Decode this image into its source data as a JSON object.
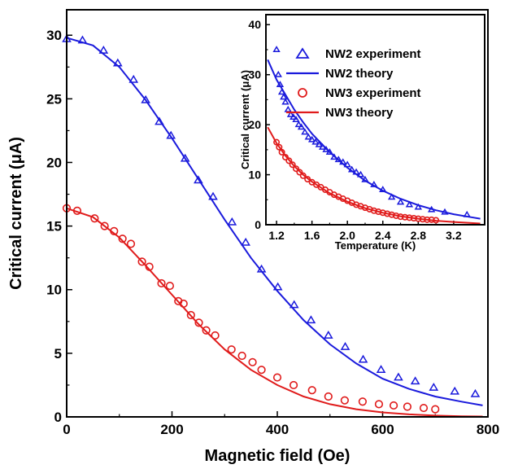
{
  "chart_data": [
    {
      "type": "scatter",
      "panel": "main",
      "xlabel": "Magnetic field (Oe)",
      "ylabel": "Critical current (μA)",
      "xlim": [
        0,
        800
      ],
      "ylim": [
        0,
        32
      ],
      "xticks": [
        0,
        200,
        400,
        600,
        800
      ],
      "yticks": [
        0,
        5,
        10,
        15,
        20,
        25,
        30
      ],
      "grid": false,
      "series": [
        {
          "name": "NW2 experiment",
          "kind": "markers",
          "marker": "triangle",
          "color": "#1a1adc",
          "x": [
            0,
            30,
            70,
            97,
            127,
            150,
            176,
            198,
            225,
            250,
            278,
            314,
            340,
            370,
            401,
            432,
            464,
            497,
            529,
            563,
            597,
            630,
            662,
            697,
            737,
            776
          ],
          "y": [
            29.7,
            29.6,
            28.8,
            27.8,
            26.5,
            24.9,
            23.2,
            22.1,
            20.3,
            18.6,
            17.3,
            15.3,
            13.7,
            11.6,
            10.2,
            8.8,
            7.6,
            6.4,
            5.5,
            4.5,
            3.7,
            3.1,
            2.8,
            2.3,
            2.0,
            1.8
          ]
        },
        {
          "name": "NW2 theory",
          "kind": "line",
          "color": "#1a1adc",
          "x": [
            0,
            50,
            100,
            150,
            200,
            250,
            300,
            350,
            400,
            450,
            500,
            550,
            600,
            650,
            700,
            750,
            790
          ],
          "y": [
            29.8,
            29.2,
            27.5,
            24.9,
            21.9,
            18.7,
            15.5,
            12.5,
            9.9,
            7.6,
            5.7,
            4.2,
            3.0,
            2.2,
            1.6,
            1.2,
            0.9
          ]
        },
        {
          "name": "NW3 experiment",
          "kind": "markers",
          "marker": "circle",
          "color": "#e01b1b",
          "x": [
            0,
            20,
            53,
            72,
            90,
            106,
            122,
            143,
            157,
            180,
            196,
            212,
            222,
            236,
            251,
            265,
            282,
            313,
            333,
            353,
            370,
            400,
            431,
            466,
            497,
            528,
            562,
            593,
            621,
            647,
            678,
            700
          ],
          "y": [
            16.4,
            16.2,
            15.6,
            15.0,
            14.6,
            14.0,
            13.6,
            12.2,
            11.8,
            10.5,
            10.3,
            9.1,
            8.9,
            8.0,
            7.4,
            6.8,
            6.4,
            5.3,
            4.8,
            4.3,
            3.7,
            3.1,
            2.5,
            2.1,
            1.6,
            1.3,
            1.2,
            1.0,
            0.9,
            0.8,
            0.7,
            0.6
          ]
        },
        {
          "name": "NW3 theory",
          "kind": "line",
          "color": "#e01b1b",
          "x": [
            0,
            50,
            100,
            150,
            200,
            250,
            300,
            350,
            400,
            450,
            500,
            550,
            600,
            650,
            700,
            750,
            790
          ],
          "y": [
            16.4,
            15.7,
            14.1,
            11.9,
            9.6,
            7.3,
            5.3,
            3.7,
            2.5,
            1.6,
            1.0,
            0.6,
            0.35,
            0.2,
            0.1,
            0.05,
            0.03
          ]
        }
      ]
    },
    {
      "type": "scatter",
      "panel": "inset",
      "xlabel": "Temperature (K)",
      "ylabel": "Critical current (μA)",
      "xlim": [
        1.08,
        3.55
      ],
      "ylim": [
        0,
        42
      ],
      "xticks": [
        1.2,
        1.6,
        2.0,
        2.4,
        2.8,
        3.2
      ],
      "yticks": [
        0,
        10,
        20,
        30,
        40
      ],
      "legend_placement": "top-right",
      "grid": false,
      "series": [
        {
          "name": "NW2 experiment",
          "kind": "markers",
          "marker": "triangle",
          "color": "#1a1adc",
          "x": [
            1.2,
            1.22,
            1.24,
            1.26,
            1.28,
            1.3,
            1.33,
            1.36,
            1.39,
            1.42,
            1.45,
            1.48,
            1.52,
            1.56,
            1.6,
            1.64,
            1.68,
            1.72,
            1.76,
            1.8,
            1.85,
            1.9,
            1.95,
            2.0,
            2.05,
            2.1,
            2.15,
            2.2,
            2.3,
            2.4,
            2.5,
            2.6,
            2.7,
            2.8,
            2.95,
            3.1,
            3.35
          ],
          "y": [
            35,
            30,
            28,
            26.5,
            25.5,
            24.5,
            23,
            22,
            21.5,
            21,
            20,
            19.5,
            18.5,
            17.5,
            17,
            16.5,
            16,
            15.5,
            15,
            14.5,
            13.5,
            13,
            12.5,
            12,
            11,
            10.5,
            10,
            9,
            8,
            7,
            5.5,
            4.5,
            4,
            3.5,
            3,
            2.5,
            2
          ]
        },
        {
          "name": "NW2 theory",
          "kind": "line",
          "color": "#1a1adc",
          "x": [
            1.1,
            1.2,
            1.3,
            1.4,
            1.5,
            1.6,
            1.8,
            2.0,
            2.2,
            2.4,
            2.6,
            2.8,
            3.0,
            3.2,
            3.4,
            3.5
          ],
          "y": [
            33,
            29,
            26,
            23,
            20.5,
            18.2,
            14.5,
            11.4,
            8.8,
            6.8,
            5.2,
            3.9,
            2.9,
            2.1,
            1.5,
            1.2
          ]
        },
        {
          "name": "NW3 experiment",
          "kind": "markers",
          "marker": "circle",
          "color": "#e01b1b",
          "x": [
            1.2,
            1.23,
            1.26,
            1.3,
            1.34,
            1.38,
            1.42,
            1.46,
            1.5,
            1.55,
            1.6,
            1.65,
            1.7,
            1.75,
            1.8,
            1.85,
            1.9,
            1.95,
            2.0,
            2.05,
            2.1,
            2.15,
            2.2,
            2.25,
            2.3,
            2.35,
            2.4,
            2.45,
            2.5,
            2.55,
            2.6,
            2.65,
            2.7,
            2.75,
            2.8,
            2.85,
            2.9,
            2.95,
            3.0
          ],
          "y": [
            16.5,
            15.5,
            14.5,
            13.5,
            12.8,
            12,
            11.2,
            10.5,
            9.8,
            9.1,
            8.5,
            8,
            7.5,
            7,
            6.5,
            6,
            5.6,
            5.2,
            4.8,
            4.4,
            4,
            3.7,
            3.4,
            3.1,
            2.8,
            2.6,
            2.4,
            2.2,
            2,
            1.8,
            1.6,
            1.5,
            1.4,
            1.3,
            1.2,
            1.1,
            1,
            1,
            0.9
          ]
        },
        {
          "name": "NW3 theory",
          "kind": "line",
          "color": "#e01b1b",
          "x": [
            1.1,
            1.2,
            1.3,
            1.4,
            1.5,
            1.6,
            1.8,
            2.0,
            2.2,
            2.4,
            2.6,
            2.8,
            3.0,
            3.2,
            3.4,
            3.5
          ],
          "y": [
            19.5,
            16.3,
            13.8,
            11.7,
            10.0,
            8.6,
            6.3,
            4.6,
            3.3,
            2.4,
            1.7,
            1.2,
            0.8,
            0.55,
            0.35,
            0.25
          ]
        }
      ]
    }
  ]
}
